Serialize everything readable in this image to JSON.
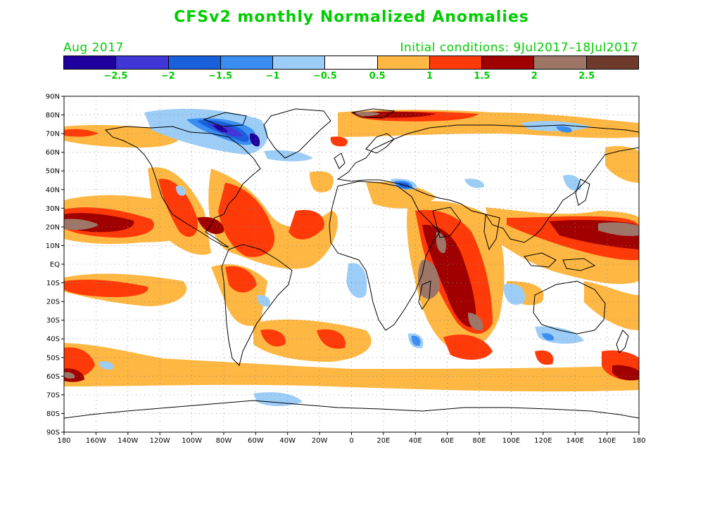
{
  "title": "CFSv2 monthly Normalized Anomalies",
  "valid_month": "Aug 2017",
  "initial_conditions": "Initial conditions: 9Jul2017–18Jul2017",
  "colorbar": {
    "colors": [
      "#1f009f",
      "#4036d6",
      "#1a5fdb",
      "#3a8ef2",
      "#9ccdf7",
      "#ffffff",
      "#fdb742",
      "#ff3a09",
      "#a00000",
      "#9e7668",
      "#6e3a2c"
    ],
    "labels": [
      "−2.5",
      "−2",
      "−1.5",
      "−1",
      "−0.5",
      "0.5",
      "1",
      "1.5",
      "2",
      "2.5"
    ]
  },
  "map": {
    "lat_labels": [
      "90N",
      "80N",
      "70N",
      "60N",
      "50N",
      "40N",
      "30N",
      "20N",
      "10N",
      "EQ",
      "10S",
      "20S",
      "30S",
      "40S",
      "50S",
      "60S",
      "70S",
      "80S",
      "90S"
    ],
    "lon_labels": [
      "180",
      "160W",
      "140W",
      "120W",
      "100W",
      "80W",
      "60W",
      "40W",
      "20W",
      "0",
      "20E",
      "40E",
      "60E",
      "80E",
      "100E",
      "120E",
      "140E",
      "160E",
      "180"
    ],
    "gridlines": true,
    "projection": "cylindrical equidistant",
    "lat_range": [
      -90,
      90
    ],
    "lon_range": [
      -180,
      180
    ]
  }
}
